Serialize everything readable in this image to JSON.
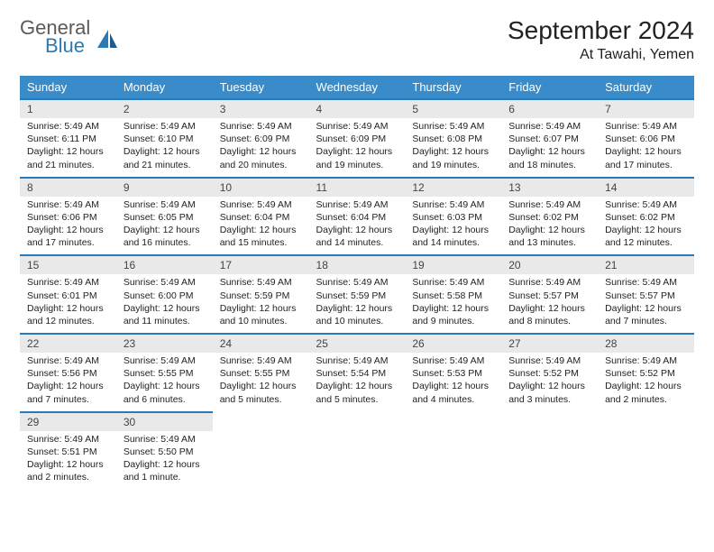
{
  "logo": {
    "top": "General",
    "bottom": "Blue"
  },
  "title": "September 2024",
  "location": "At Tawahi, Yemen",
  "colors": {
    "header_bg": "#3a8bc9",
    "header_text": "#ffffff",
    "date_bg": "#e9e9e9",
    "border": "#2a7ab8",
    "logo_gray": "#5a5a5a",
    "logo_blue": "#2a7ab8"
  },
  "day_names": [
    "Sunday",
    "Monday",
    "Tuesday",
    "Wednesday",
    "Thursday",
    "Friday",
    "Saturday"
  ],
  "weeks": [
    [
      {
        "d": "1",
        "sr": "Sunrise: 5:49 AM",
        "ss": "Sunset: 6:11 PM",
        "dl1": "Daylight: 12 hours",
        "dl2": "and 21 minutes."
      },
      {
        "d": "2",
        "sr": "Sunrise: 5:49 AM",
        "ss": "Sunset: 6:10 PM",
        "dl1": "Daylight: 12 hours",
        "dl2": "and 21 minutes."
      },
      {
        "d": "3",
        "sr": "Sunrise: 5:49 AM",
        "ss": "Sunset: 6:09 PM",
        "dl1": "Daylight: 12 hours",
        "dl2": "and 20 minutes."
      },
      {
        "d": "4",
        "sr": "Sunrise: 5:49 AM",
        "ss": "Sunset: 6:09 PM",
        "dl1": "Daylight: 12 hours",
        "dl2": "and 19 minutes."
      },
      {
        "d": "5",
        "sr": "Sunrise: 5:49 AM",
        "ss": "Sunset: 6:08 PM",
        "dl1": "Daylight: 12 hours",
        "dl2": "and 19 minutes."
      },
      {
        "d": "6",
        "sr": "Sunrise: 5:49 AM",
        "ss": "Sunset: 6:07 PM",
        "dl1": "Daylight: 12 hours",
        "dl2": "and 18 minutes."
      },
      {
        "d": "7",
        "sr": "Sunrise: 5:49 AM",
        "ss": "Sunset: 6:06 PM",
        "dl1": "Daylight: 12 hours",
        "dl2": "and 17 minutes."
      }
    ],
    [
      {
        "d": "8",
        "sr": "Sunrise: 5:49 AM",
        "ss": "Sunset: 6:06 PM",
        "dl1": "Daylight: 12 hours",
        "dl2": "and 17 minutes."
      },
      {
        "d": "9",
        "sr": "Sunrise: 5:49 AM",
        "ss": "Sunset: 6:05 PM",
        "dl1": "Daylight: 12 hours",
        "dl2": "and 16 minutes."
      },
      {
        "d": "10",
        "sr": "Sunrise: 5:49 AM",
        "ss": "Sunset: 6:04 PM",
        "dl1": "Daylight: 12 hours",
        "dl2": "and 15 minutes."
      },
      {
        "d": "11",
        "sr": "Sunrise: 5:49 AM",
        "ss": "Sunset: 6:04 PM",
        "dl1": "Daylight: 12 hours",
        "dl2": "and 14 minutes."
      },
      {
        "d": "12",
        "sr": "Sunrise: 5:49 AM",
        "ss": "Sunset: 6:03 PM",
        "dl1": "Daylight: 12 hours",
        "dl2": "and 14 minutes."
      },
      {
        "d": "13",
        "sr": "Sunrise: 5:49 AM",
        "ss": "Sunset: 6:02 PM",
        "dl1": "Daylight: 12 hours",
        "dl2": "and 13 minutes."
      },
      {
        "d": "14",
        "sr": "Sunrise: 5:49 AM",
        "ss": "Sunset: 6:02 PM",
        "dl1": "Daylight: 12 hours",
        "dl2": "and 12 minutes."
      }
    ],
    [
      {
        "d": "15",
        "sr": "Sunrise: 5:49 AM",
        "ss": "Sunset: 6:01 PM",
        "dl1": "Daylight: 12 hours",
        "dl2": "and 12 minutes."
      },
      {
        "d": "16",
        "sr": "Sunrise: 5:49 AM",
        "ss": "Sunset: 6:00 PM",
        "dl1": "Daylight: 12 hours",
        "dl2": "and 11 minutes."
      },
      {
        "d": "17",
        "sr": "Sunrise: 5:49 AM",
        "ss": "Sunset: 5:59 PM",
        "dl1": "Daylight: 12 hours",
        "dl2": "and 10 minutes."
      },
      {
        "d": "18",
        "sr": "Sunrise: 5:49 AM",
        "ss": "Sunset: 5:59 PM",
        "dl1": "Daylight: 12 hours",
        "dl2": "and 10 minutes."
      },
      {
        "d": "19",
        "sr": "Sunrise: 5:49 AM",
        "ss": "Sunset: 5:58 PM",
        "dl1": "Daylight: 12 hours",
        "dl2": "and 9 minutes."
      },
      {
        "d": "20",
        "sr": "Sunrise: 5:49 AM",
        "ss": "Sunset: 5:57 PM",
        "dl1": "Daylight: 12 hours",
        "dl2": "and 8 minutes."
      },
      {
        "d": "21",
        "sr": "Sunrise: 5:49 AM",
        "ss": "Sunset: 5:57 PM",
        "dl1": "Daylight: 12 hours",
        "dl2": "and 7 minutes."
      }
    ],
    [
      {
        "d": "22",
        "sr": "Sunrise: 5:49 AM",
        "ss": "Sunset: 5:56 PM",
        "dl1": "Daylight: 12 hours",
        "dl2": "and 7 minutes."
      },
      {
        "d": "23",
        "sr": "Sunrise: 5:49 AM",
        "ss": "Sunset: 5:55 PM",
        "dl1": "Daylight: 12 hours",
        "dl2": "and 6 minutes."
      },
      {
        "d": "24",
        "sr": "Sunrise: 5:49 AM",
        "ss": "Sunset: 5:55 PM",
        "dl1": "Daylight: 12 hours",
        "dl2": "and 5 minutes."
      },
      {
        "d": "25",
        "sr": "Sunrise: 5:49 AM",
        "ss": "Sunset: 5:54 PM",
        "dl1": "Daylight: 12 hours",
        "dl2": "and 5 minutes."
      },
      {
        "d": "26",
        "sr": "Sunrise: 5:49 AM",
        "ss": "Sunset: 5:53 PM",
        "dl1": "Daylight: 12 hours",
        "dl2": "and 4 minutes."
      },
      {
        "d": "27",
        "sr": "Sunrise: 5:49 AM",
        "ss": "Sunset: 5:52 PM",
        "dl1": "Daylight: 12 hours",
        "dl2": "and 3 minutes."
      },
      {
        "d": "28",
        "sr": "Sunrise: 5:49 AM",
        "ss": "Sunset: 5:52 PM",
        "dl1": "Daylight: 12 hours",
        "dl2": "and 2 minutes."
      }
    ],
    [
      {
        "d": "29",
        "sr": "Sunrise: 5:49 AM",
        "ss": "Sunset: 5:51 PM",
        "dl1": "Daylight: 12 hours",
        "dl2": "and 2 minutes."
      },
      {
        "d": "30",
        "sr": "Sunrise: 5:49 AM",
        "ss": "Sunset: 5:50 PM",
        "dl1": "Daylight: 12 hours",
        "dl2": "and 1 minute."
      },
      null,
      null,
      null,
      null,
      null
    ]
  ]
}
